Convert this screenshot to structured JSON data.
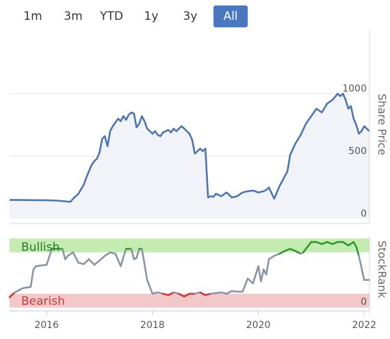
{
  "range_selector": {
    "buttons": [
      {
        "label": "1m"
      },
      {
        "label": "3m"
      },
      {
        "label": "YTD"
      },
      {
        "label": "1y"
      },
      {
        "label": "3y"
      },
      {
        "label": "All"
      }
    ],
    "active": "All"
  },
  "colors": {
    "price_line": "#4a74b4",
    "price_fill": "#f1f3f9",
    "rank_neutral": "#8a93a6",
    "rank_bullish": "#2e9a2e",
    "rank_bearish": "#cc3a3a",
    "bullish_zone": "#c4ecb0",
    "bearish_zone": "#f2c8c8",
    "active_button": "#4a78c0"
  },
  "chart_data": [
    {
      "type": "area",
      "ylabel": "Share Price",
      "ylim": [
        0,
        1000
      ],
      "yticks": [
        {
          "value": 0,
          "label": "0"
        },
        {
          "value": 500,
          "label": "500"
        },
        {
          "value": 1000,
          "label": "1000"
        }
      ],
      "xlim": [
        2015.3,
        2022.1
      ],
      "grid": true,
      "series": [
        {
          "x": [
            2015.3,
            2015.5,
            2015.8,
            2016.0,
            2016.2,
            2016.45,
            2016.5,
            2016.6,
            2016.7,
            2016.75,
            2016.8,
            2016.85,
            2016.9,
            2016.95,
            2017.0,
            2017.05,
            2017.1,
            2017.15,
            2017.2,
            2017.25,
            2017.3,
            2017.35,
            2017.4,
            2017.45,
            2017.5,
            2017.55,
            2017.6,
            2017.65,
            2017.7,
            2017.75,
            2017.8,
            2017.85,
            2017.9,
            2017.95,
            2018.0,
            2018.05,
            2018.1,
            2018.15,
            2018.2,
            2018.25,
            2018.3,
            2018.35,
            2018.4,
            2018.45,
            2018.5,
            2018.55,
            2018.6,
            2018.65,
            2018.7,
            2018.75,
            2018.8,
            2018.85,
            2018.9,
            2018.95,
            2019.0,
            2019.05,
            2019.1,
            2019.15,
            2019.2,
            2019.3,
            2019.4,
            2019.5,
            2019.6,
            2019.7,
            2019.8,
            2019.9,
            2020.0,
            2020.1,
            2020.15,
            2020.2,
            2020.3,
            2020.4,
            2020.45,
            2020.5,
            2020.55,
            2020.6,
            2020.7,
            2020.8,
            2020.9,
            2021.0,
            2021.1,
            2021.2,
            2021.3,
            2021.4,
            2021.5,
            2021.55,
            2021.6,
            2021.65,
            2021.7,
            2021.75,
            2021.8,
            2021.85,
            2021.9,
            2021.95,
            2022.0,
            2022.05,
            2022.1
          ],
          "values": [
            150,
            150,
            148,
            148,
            145,
            135,
            160,
            200,
            270,
            330,
            380,
            430,
            460,
            480,
            530,
            640,
            660,
            580,
            700,
            740,
            770,
            800,
            780,
            820,
            790,
            830,
            850,
            840,
            730,
            760,
            820,
            780,
            720,
            700,
            680,
            700,
            670,
            660,
            690,
            700,
            710,
            690,
            720,
            700,
            720,
            740,
            720,
            700,
            680,
            630,
            520,
            540,
            560,
            540,
            560,
            170,
            180,
            175,
            200,
            180,
            210,
            170,
            180,
            210,
            220,
            225,
            210,
            220,
            230,
            250,
            160,
            260,
            300,
            340,
            380,
            510,
            600,
            670,
            760,
            820,
            880,
            850,
            920,
            950,
            1000,
            980,
            1000,
            950,
            880,
            900,
            800,
            750,
            680,
            700,
            740,
            720,
            700
          ]
        }
      ]
    },
    {
      "type": "line",
      "ylabel": "StockRank",
      "yticks": [
        {
          "value": 0,
          "label": "0"
        }
      ],
      "ylim": [
        0,
        100
      ],
      "xlim": [
        2015.3,
        2022.1
      ],
      "xticks": [
        {
          "value": 2016,
          "label": "2016"
        },
        {
          "value": 2018,
          "label": "2018"
        },
        {
          "value": 2020,
          "label": "2020"
        },
        {
          "value": 2022,
          "label": "2022"
        }
      ],
      "zones": [
        {
          "label": "Bullish",
          "from": 80,
          "to": 100
        },
        {
          "label": "Bearish",
          "from": 0,
          "to": 20
        }
      ],
      "series": [
        {
          "x": [
            2015.3,
            2015.4,
            2015.55,
            2015.7,
            2015.75,
            2015.8,
            2016.0,
            2016.1,
            2016.3,
            2016.35,
            2016.4,
            2016.5,
            2016.6,
            2016.7,
            2016.8,
            2016.9,
            2017.0,
            2017.1,
            2017.2,
            2017.3,
            2017.4,
            2017.5,
            2017.6,
            2017.65,
            2017.7,
            2017.75,
            2017.8,
            2017.9,
            2018.0,
            2018.1,
            2018.2,
            2018.3,
            2018.4,
            2018.5,
            2018.6,
            2018.7,
            2018.8,
            2018.9,
            2019.0,
            2019.1,
            2019.2,
            2019.3,
            2019.4,
            2019.5,
            2019.6,
            2019.7,
            2019.8,
            2019.9,
            2020.0,
            2020.05,
            2020.1,
            2020.15,
            2020.2,
            2020.3,
            2020.4,
            2020.5,
            2020.6,
            2020.7,
            2020.8,
            2020.85,
            2020.9,
            2021.0,
            2021.1,
            2021.2,
            2021.3,
            2021.4,
            2021.5,
            2021.6,
            2021.7,
            2021.8,
            2021.85,
            2021.9,
            2022.0,
            2022.1
          ],
          "values": [
            15,
            22,
            28,
            30,
            55,
            60,
            62,
            85,
            85,
            70,
            75,
            80,
            65,
            63,
            70,
            62,
            68,
            75,
            80,
            78,
            60,
            85,
            85,
            70,
            72,
            85,
            85,
            40,
            20,
            22,
            20,
            18,
            22,
            20,
            16,
            20,
            20,
            22,
            18,
            20,
            21,
            22,
            20,
            24,
            23,
            23,
            42,
            35,
            60,
            38,
            55,
            48,
            70,
            75,
            78,
            82,
            85,
            82,
            78,
            80,
            85,
            95,
            95,
            92,
            95,
            92,
            95,
            95,
            90,
            95,
            88,
            75,
            40,
            40
          ]
        }
      ]
    }
  ]
}
